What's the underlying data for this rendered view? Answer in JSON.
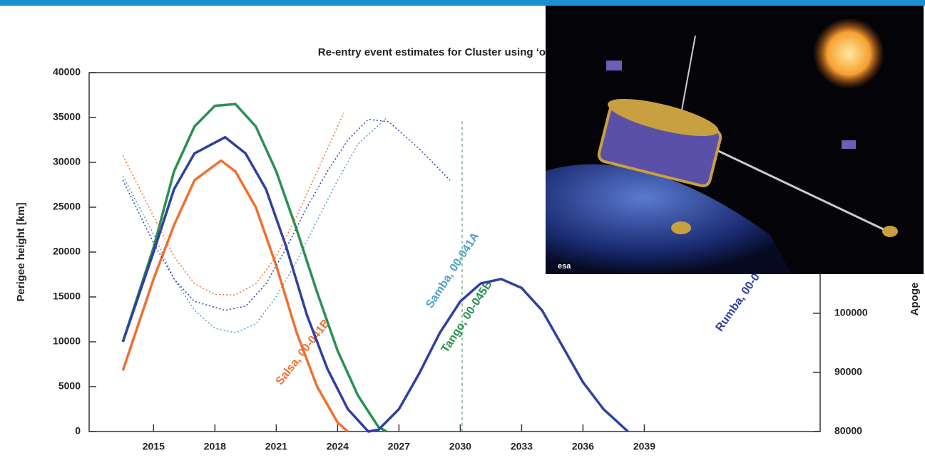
{
  "chart_data": {
    "type": "line",
    "title": "Re-entry event estimates for Cluster using ‘orbgen’ fro",
    "ylabel": "Perigee height [km]",
    "y2label": "Apoge",
    "xlim": [
      2011.85,
      2047.6
    ],
    "xticks": [
      2015,
      2018,
      2021,
      2024,
      2027,
      2030,
      2033,
      2036,
      2039
    ],
    "ylim": [
      0,
      40000
    ],
    "yticks": [
      0,
      5000,
      10000,
      15000,
      20000,
      25000,
      30000,
      35000,
      40000
    ],
    "y2lim": [
      80000,
      140700
    ],
    "y2ticks": [
      80000,
      90000,
      100000
    ],
    "series": [
      {
        "name": "Salsa, 00-041B",
        "color": "#f07030",
        "style": "solid",
        "x": [
          2013.5,
          2015,
          2016,
          2017,
          2018.3,
          2019,
          2020,
          2021,
          2022,
          2023,
          2024,
          2024.5
        ],
        "values": [
          6800,
          17000,
          23000,
          28000,
          30200,
          29000,
          25000,
          18500,
          11000,
          5000,
          1000,
          0
        ]
      },
      {
        "name": "Samba, 00-041A",
        "color": "#50a0c8",
        "style": "dotted",
        "axis": "y2",
        "x": [
          2013.5,
          2015,
          2016,
          2017,
          2018,
          2019,
          2020,
          2021,
          2022,
          2023,
          2024,
          2025,
          2026.4
        ],
        "values": [
          123250,
          113400,
          105800,
          100500,
          97450,
          96700,
          98200,
          102800,
          108800,
          115700,
          122500,
          128600,
          133100
        ]
      },
      {
        "name": "Tango, 00-045B",
        "color": "#2a9050",
        "style": "solid",
        "x": [
          2013.5,
          2015,
          2016,
          2017,
          2018,
          2019,
          2020,
          2021,
          2022,
          2023,
          2024,
          2025,
          2026,
          2026.4
        ],
        "values": [
          10000,
          20500,
          29000,
          34000,
          36300,
          36500,
          34000,
          29000,
          22500,
          15500,
          9000,
          4000,
          500,
          0
        ]
      },
      {
        "name": "Rumba, 00-0",
        "color": "#3040a0",
        "style": "solid",
        "x": [
          2013.5,
          2015,
          2016,
          2017,
          2018.5,
          2019.5,
          2020.5,
          2021.5,
          2022.5,
          2023.5,
          2024.5,
          2025.5,
          2026,
          2027,
          2028,
          2029,
          2030,
          2031,
          2032,
          2033,
          2034,
          2035,
          2036,
          2037,
          2038.2
        ],
        "values": [
          10000,
          20000,
          27000,
          31000,
          32800,
          31000,
          27000,
          20500,
          13000,
          7000,
          2500,
          0,
          200,
          2500,
          6500,
          11000,
          14500,
          16500,
          17000,
          16000,
          13500,
          9500,
          5500,
          2500,
          0
        ]
      },
      {
        "color": "#f07030",
        "style": "dotted",
        "axis": "y2",
        "x": [
          2013.5,
          2015,
          2016,
          2017,
          2018,
          2019,
          2020,
          2021,
          2022,
          2023,
          2024.3
        ],
        "values": [
          126700,
          116400,
          109600,
          105000,
          103200,
          103100,
          105000,
          109600,
          116400,
          124000,
          133900
        ]
      },
      {
        "color": "#3040a0",
        "style": "dotted",
        "axis": "y2",
        "x": [
          2013.5,
          2015,
          2016,
          2017,
          2018.5,
          2019.5,
          2020.5,
          2021.5,
          2022.5,
          2023.5,
          2024.5,
          2025.5,
          2026.5,
          2028,
          2029.5
        ],
        "values": [
          122500,
          111900,
          105800,
          102000,
          100500,
          101200,
          105000,
          111100,
          117900,
          124000,
          129300,
          132800,
          132400,
          127800,
          122500
        ]
      }
    ]
  },
  "inset": {
    "logo": "esa"
  }
}
